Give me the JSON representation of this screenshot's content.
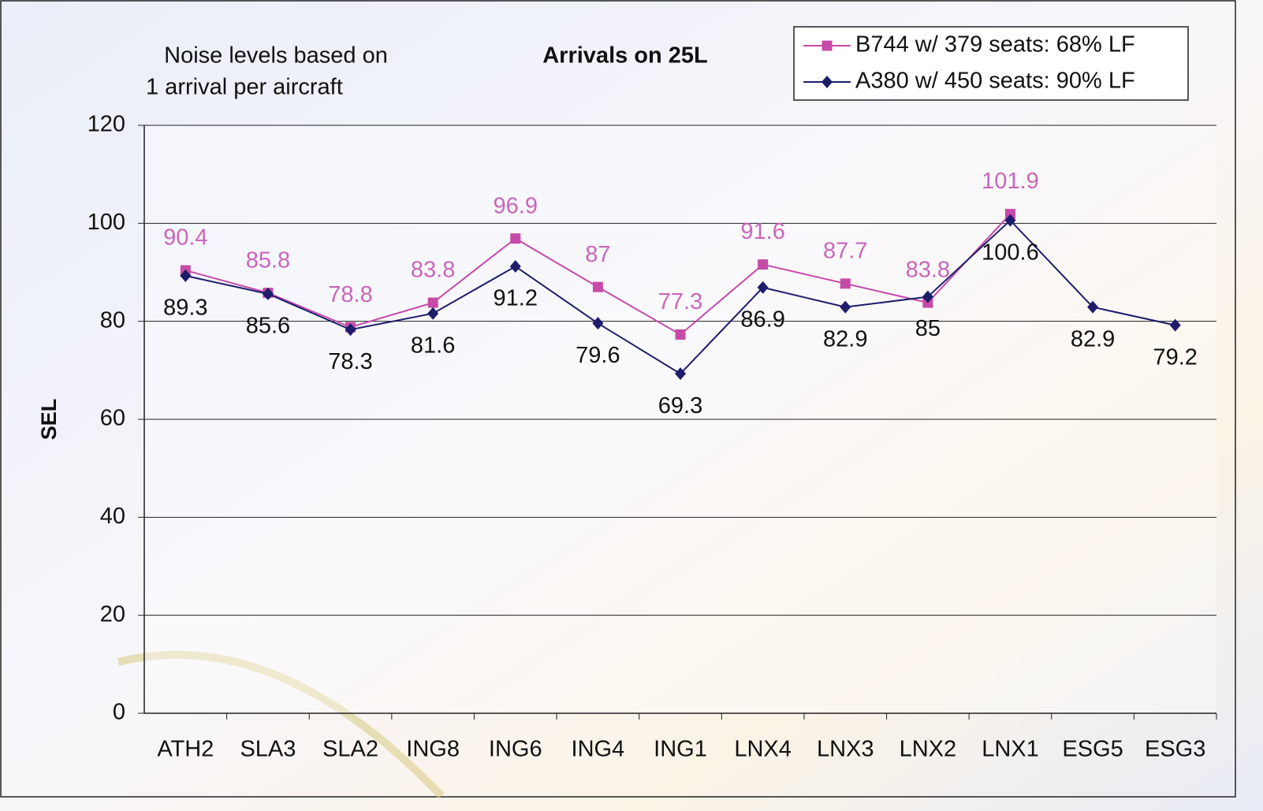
{
  "chart_data": {
    "type": "line",
    "title": "Arrivals on 25L",
    "annotation": [
      "Noise levels based on",
      "1 arrival per aircraft"
    ],
    "y_label": "SEL",
    "categories": [
      "ATH2",
      "SLA3",
      "SLA2",
      "ING8",
      "ING6",
      "ING4",
      "ING1",
      "LNX4",
      "LNX3",
      "LNX2",
      "LNX1",
      "ESG5",
      "ESG3"
    ],
    "series": [
      {
        "name": "B744 w/ 379 seats: 68% LF",
        "color": "#c64aa8",
        "label_color": "#c966bb",
        "marker": "square",
        "values": [
          90.4,
          85.8,
          78.8,
          83.8,
          96.9,
          87,
          77.3,
          91.6,
          87.7,
          83.8,
          101.9,
          null,
          null
        ]
      },
      {
        "name": "A380 w/ 450 seats: 90% LF",
        "color": "#1d1d6b",
        "label_color": "#111111",
        "marker": "diamond",
        "values": [
          89.3,
          85.6,
          78.3,
          81.6,
          91.2,
          79.6,
          69.3,
          86.9,
          82.9,
          85,
          100.6,
          82.9,
          79.2
        ]
      }
    ],
    "ylim": [
      0,
      120
    ],
    "yticks": [
      0,
      20,
      40,
      60,
      80,
      100,
      120
    ],
    "grid": true,
    "legend": "top-right"
  }
}
